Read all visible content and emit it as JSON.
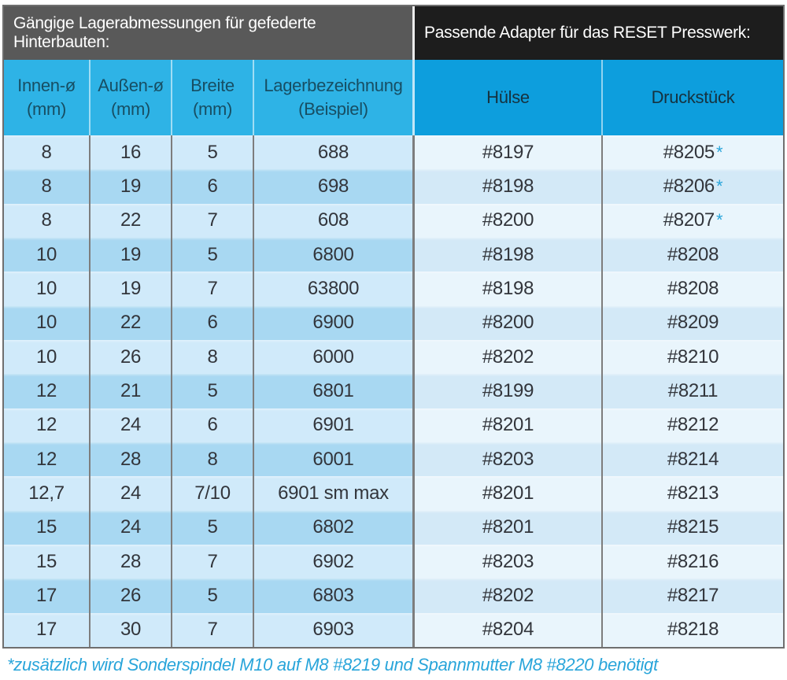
{
  "colors": {
    "header-gray": "#595959",
    "header-black": "#1d1d1d",
    "header-text": "#ffffff",
    "cyan-left": "#2eb3e6",
    "cyan-right": "#0d9edd",
    "subheader-text-left": "#174e63",
    "subheader-text-right": "#16323f",
    "row-left-odd": "#d0eafa",
    "row-left-even": "#a8d8f2",
    "row-right-odd": "#e9f5fc",
    "row-right-even": "#d3e9f7",
    "cell-text": "#32353b",
    "accent": "#29a5da",
    "border": "#6f6f6f",
    "divider": "#7d7d7d"
  },
  "header": {
    "left_title": "Gängige Lagerabmessungen für gefederte Hinterbauten:",
    "right_title": "Passende Adapter für das RESET Presswerk:"
  },
  "columns": [
    {
      "label": "Innen-ø",
      "sub": "(mm)"
    },
    {
      "label": "Außen-ø",
      "sub": "(mm)"
    },
    {
      "label": "Breite",
      "sub": "(mm)"
    },
    {
      "label": "Lagerbezeichnung",
      "sub": "(Beispiel)"
    },
    {
      "label": "Hülse"
    },
    {
      "label": "Druckstück"
    }
  ],
  "rows": [
    {
      "innen": "8",
      "aussen": "16",
      "breite": "5",
      "lager": "688",
      "huelse": "#8197",
      "druck": "#8205",
      "star": "*"
    },
    {
      "innen": "8",
      "aussen": "19",
      "breite": "6",
      "lager": "698",
      "huelse": "#8198",
      "druck": "#8206",
      "star": "*"
    },
    {
      "innen": "8",
      "aussen": "22",
      "breite": "7",
      "lager": "608",
      "huelse": "#8200",
      "druck": "#8207",
      "star": "*"
    },
    {
      "innen": "10",
      "aussen": "19",
      "breite": "5",
      "lager": "6800",
      "huelse": "#8198",
      "druck": "#8208"
    },
    {
      "innen": "10",
      "aussen": "19",
      "breite": "7",
      "lager": "63800",
      "huelse": "#8198",
      "druck": "#8208"
    },
    {
      "innen": "10",
      "aussen": "22",
      "breite": "6",
      "lager": "6900",
      "huelse": "#8200",
      "druck": "#8209"
    },
    {
      "innen": "10",
      "aussen": "26",
      "breite": "8",
      "lager": "6000",
      "huelse": "#8202",
      "druck": "#8210"
    },
    {
      "innen": "12",
      "aussen": "21",
      "breite": "5",
      "lager": "6801",
      "huelse": "#8199",
      "druck": "#8211"
    },
    {
      "innen": "12",
      "aussen": "24",
      "breite": "6",
      "lager": "6901",
      "huelse": "#8201",
      "druck": "#8212"
    },
    {
      "innen": "12",
      "aussen": "28",
      "breite": "8",
      "lager": "6001",
      "huelse": "#8203",
      "druck": "#8214"
    },
    {
      "innen": "12,7",
      "aussen": "24",
      "breite": "7/10",
      "lager": "6901 sm max",
      "huelse": "#8201",
      "druck": "#8213"
    },
    {
      "innen": "15",
      "aussen": "24",
      "breite": "5",
      "lager": "6802",
      "huelse": "#8201",
      "druck": "#8215"
    },
    {
      "innen": "15",
      "aussen": "28",
      "breite": "7",
      "lager": "6902",
      "huelse": "#8203",
      "druck": "#8216"
    },
    {
      "innen": "17",
      "aussen": "26",
      "breite": "5",
      "lager": "6803",
      "huelse": "#8202",
      "druck": "#8217"
    },
    {
      "innen": "17",
      "aussen": "30",
      "breite": "7",
      "lager": "6903",
      "huelse": "#8204",
      "druck": "#8218"
    }
  ],
  "footnote": "*zusätzlich wird Sonderspindel M10 auf M8 #8219 und Spannmutter M8 #8220 benötigt"
}
